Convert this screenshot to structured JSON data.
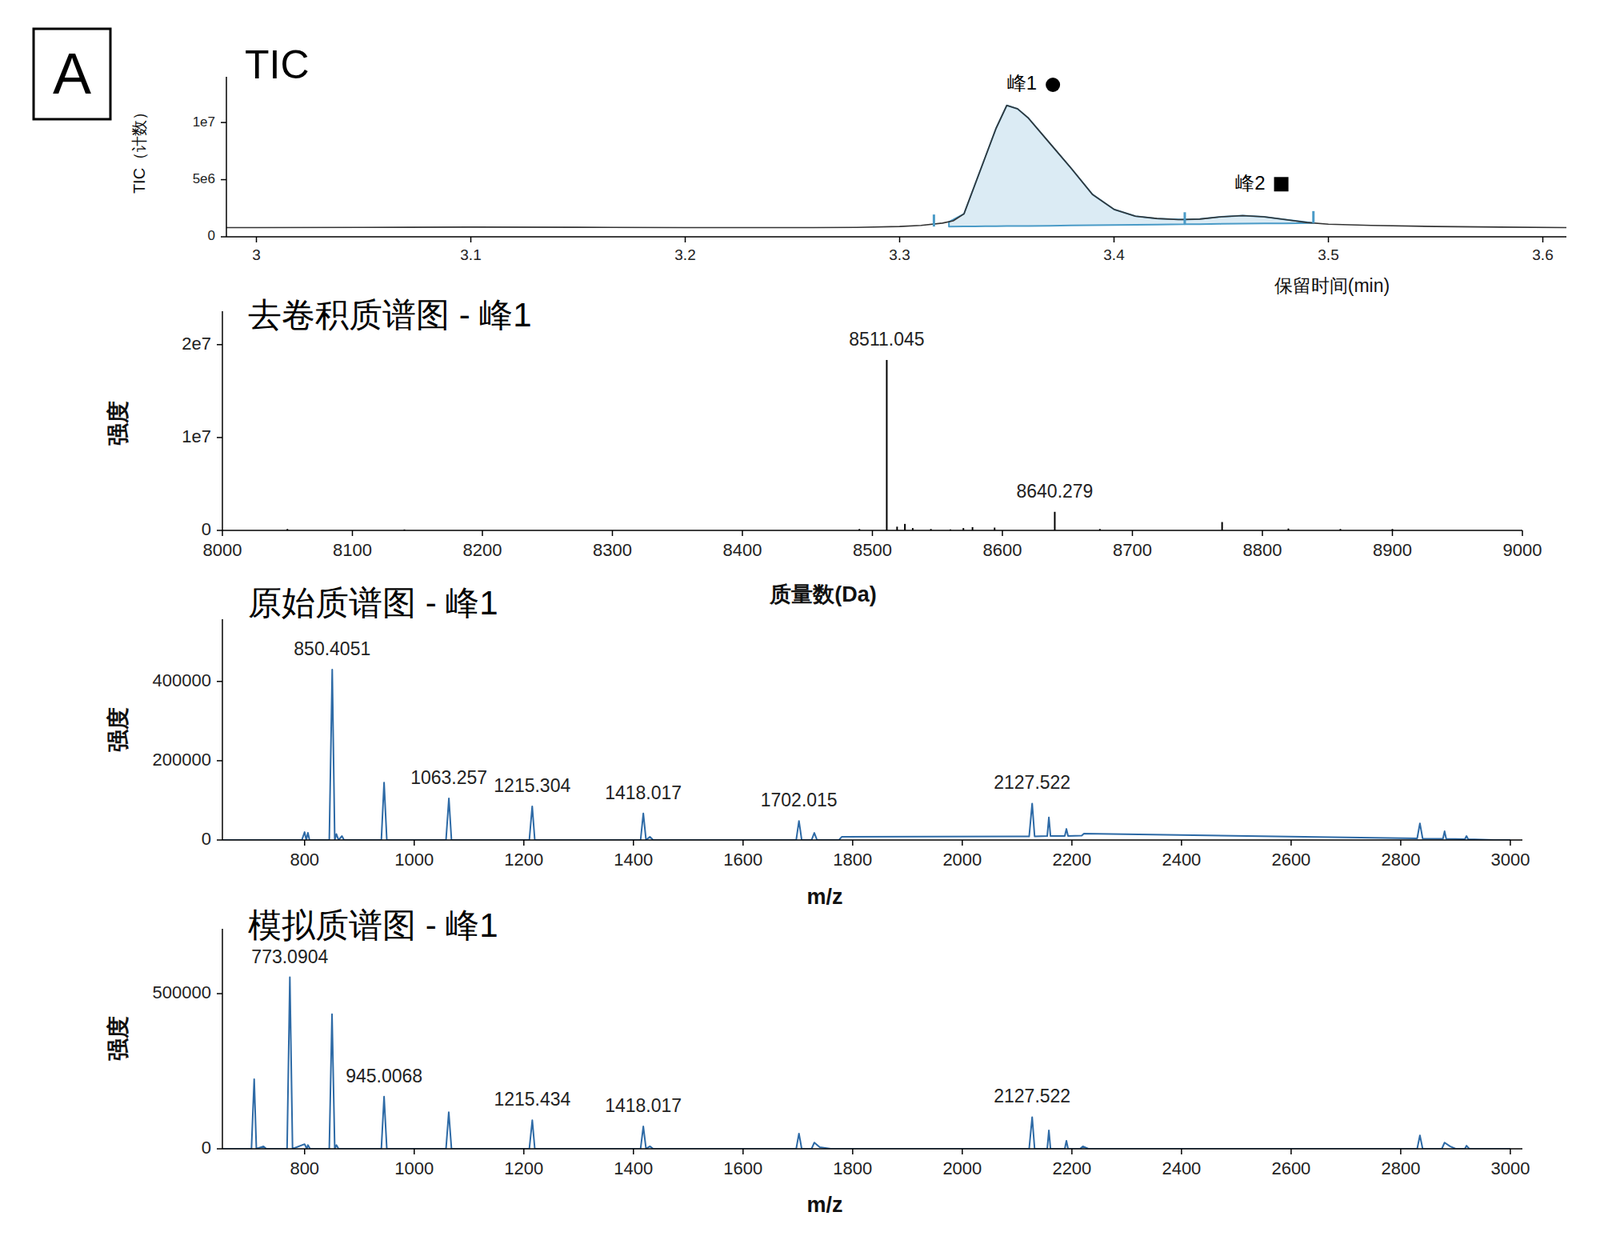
{
  "panel_label": "A",
  "chart_data": [
    {
      "type": "line",
      "title": "TIC",
      "x_label": "保留时间(min)",
      "y_label": "TIC（计数）",
      "xlim": [
        2.986,
        3.611
      ],
      "xticks": [
        3,
        3.1,
        3.2,
        3.3,
        3.4,
        3.5,
        3.6
      ],
      "ylim": [
        0,
        14000000
      ],
      "yticks": [
        0,
        {
          "value": 5000000,
          "label": "5e6"
        },
        {
          "value": 10000000,
          "label": "1e7"
        }
      ],
      "grid": false,
      "series": [
        {
          "type": "area",
          "color": "#4a9bc7",
          "x": [
            3.323,
            3.33,
            3.335,
            3.34,
            3.345,
            3.35,
            3.355,
            3.36,
            3.37,
            3.38,
            3.39,
            3.4,
            3.41,
            3.42,
            3.433
          ],
          "values": [
            1300000,
            2000000,
            4500000,
            7000000,
            9500000,
            11500000,
            11200000,
            10400000,
            8200000,
            6000000,
            3700000,
            2400000,
            1800000,
            1600000,
            1500000
          ],
          "baseline": [
            900000,
            910000,
            915000,
            920000,
            930000,
            940000,
            945000,
            950000,
            970000,
            990000,
            1010000,
            1030000,
            1050000,
            1070000,
            1100000
          ]
        },
        {
          "type": "area",
          "color": "#4a9bc7",
          "x": [
            3.433,
            3.44,
            3.45,
            3.46,
            3.47,
            3.48,
            3.493
          ],
          "values": [
            1500000,
            1550000,
            1750000,
            1850000,
            1750000,
            1500000,
            1200000
          ],
          "baseline": [
            1100000,
            1110000,
            1130000,
            1150000,
            1170000,
            1180000,
            1200000
          ]
        },
        {
          "type": "line",
          "color": "#333333",
          "x": [
            2.986,
            3.0,
            3.05,
            3.1,
            3.15,
            3.2,
            3.25,
            3.28,
            3.3,
            3.31,
            3.32,
            3.325,
            3.33,
            3.335,
            3.34,
            3.345,
            3.35,
            3.355,
            3.36,
            3.37,
            3.38,
            3.39,
            3.4,
            3.41,
            3.42,
            3.43,
            3.44,
            3.45,
            3.46,
            3.47,
            3.48,
            3.49,
            3.5,
            3.52,
            3.55,
            3.58,
            3.611
          ],
          "values": [
            800000,
            800000,
            820000,
            850000,
            830000,
            800000,
            800000,
            820000,
            900000,
            1000000,
            1200000,
            1400000,
            2000000,
            4500000,
            7000000,
            9500000,
            11500000,
            11200000,
            10400000,
            8200000,
            6000000,
            3700000,
            2400000,
            1800000,
            1600000,
            1500000,
            1550000,
            1750000,
            1850000,
            1750000,
            1500000,
            1250000,
            1100000,
            1000000,
            900000,
            850000,
            800000
          ]
        },
        {
          "type": "marker",
          "marker": "vline",
          "color": "#4a9bc7",
          "x": [
            3.316,
            3.433,
            3.493
          ],
          "values": [
            900000,
            1100000,
            1200000
          ]
        }
      ],
      "annotations": [
        {
          "text": "峰1",
          "x": 3.3715,
          "y": 13300000,
          "marker": "circle"
        },
        {
          "text": "峰2",
          "x": 3.478,
          "y": 4600000,
          "marker": "square"
        }
      ]
    },
    {
      "type": "stem",
      "title": "去卷积质谱图 - 峰1",
      "x_label": "质量数(Da)",
      "y_label": "强度",
      "xlim": [
        8000,
        9000
      ],
      "xticks": [
        8000,
        8100,
        8200,
        8300,
        8400,
        8500,
        8600,
        8700,
        8800,
        8900,
        9000
      ],
      "ylim": [
        0,
        23600000
      ],
      "yticks": [
        0,
        {
          "value": 10000000,
          "label": "1e7"
        },
        {
          "value": 20000000,
          "label": "2e7"
        }
      ],
      "grid": false,
      "series": [
        {
          "color": "#000000",
          "x": [
            8050,
            8140,
            8490,
            8511.045,
            8519,
            8525,
            8531,
            8545,
            8560,
            8570,
            8577,
            8594,
            8640.279,
            8675,
            8769,
            8820,
            8860,
            8900
          ],
          "values": [
            150000,
            100000,
            150000,
            18350000,
            400000,
            700000,
            250000,
            150000,
            100000,
            250000,
            350000,
            300000,
            2000000,
            150000,
            900000,
            200000,
            150000,
            150000
          ]
        }
      ],
      "annotations": [
        {
          "text": "8511.045",
          "x": 8511.045,
          "y": 18350000
        },
        {
          "text": "8640.279",
          "x": 8640.279,
          "y": 2000000
        }
      ]
    },
    {
      "type": "line",
      "title": "原始质谱图 - 峰1",
      "x_label": "m/z",
      "y_label": "强度",
      "xlim": [
        650,
        3022
      ],
      "xticks": [
        800,
        1000,
        1200,
        1400,
        1600,
        1800,
        2000,
        2200,
        2400,
        2600,
        2800,
        3000
      ],
      "ylim": [
        0,
        557000
      ],
      "yticks": [
        0,
        200000,
        400000
      ],
      "grid": false,
      "series": [
        {
          "color": "#2d6aa6",
          "x": [
            650,
            795,
            800,
            803,
            806,
            809,
            845,
            850.4051,
            855,
            858,
            862,
            868,
            872,
            940,
            945,
            950,
            1058,
            1063.257,
            1068,
            1210,
            1215.304,
            1220,
            1413,
            1418.017,
            1423,
            1430,
            1436,
            1697,
            1702.015,
            1707,
            1725,
            1730,
            1735,
            1775,
            1780,
            2122,
            2127.522,
            2132,
            2155,
            2158,
            2161,
            2187,
            2190,
            2193,
            2218,
            2222,
            2830,
            2835,
            2840,
            2877,
            2880,
            2883,
            2917,
            2920,
            2923,
            2970,
            3000
          ],
          "values": [
            0,
            0,
            20000,
            0,
            18000,
            0,
            0,
            430000,
            0,
            15000,
            0,
            10000,
            0,
            0,
            145000,
            0,
            0,
            105000,
            0,
            0,
            85000,
            0,
            0,
            67000,
            0,
            8000,
            0,
            0,
            48000,
            0,
            0,
            18000,
            0,
            0,
            8000,
            9000,
            92000,
            9000,
            10000,
            57000,
            10000,
            10000,
            28000,
            10000,
            11000,
            16000,
            4000,
            42000,
            3500,
            3000,
            22000,
            3000,
            2000,
            10000,
            2000,
            0,
            0
          ]
        }
      ],
      "annotations": [
        {
          "text": "850.4051",
          "x": 850.4051,
          "y": 430000
        },
        {
          "text": "1063.257",
          "x": 1063.257,
          "y": 105000
        },
        {
          "text": "1215.304",
          "x": 1215.304,
          "y": 85000
        },
        {
          "text": "1418.017",
          "x": 1418.017,
          "y": 67000
        },
        {
          "text": "1702.015",
          "x": 1702.015,
          "y": 48000
        },
        {
          "text": "2127.522",
          "x": 2127.522,
          "y": 92000
        }
      ]
    },
    {
      "type": "line",
      "title": "模拟质谱图 - 峰1",
      "x_label": "m/z",
      "y_label": "强度",
      "xlim": [
        650,
        3022
      ],
      "xticks": [
        800,
        1000,
        1200,
        1400,
        1600,
        1800,
        2000,
        2200,
        2400,
        2600,
        2800,
        3000
      ],
      "ylim": [
        0,
        709000
      ],
      "yticks": [
        0,
        500000
      ],
      "grid": false,
      "series": [
        {
          "color": "#2d6aa6",
          "x": [
            650,
            703,
            708,
            712,
            725,
            730,
            768,
            773.0904,
            778,
            800,
            804,
            806,
            810,
            845,
            850,
            855,
            858,
            862,
            940,
            945.0068,
            950,
            1058,
            1063,
            1068,
            1210,
            1215.434,
            1220,
            1413,
            1418.017,
            1423,
            1430,
            1436,
            1697,
            1702,
            1707,
            1725,
            1730,
            1740,
            1760,
            2122,
            2127.522,
            2132,
            2155,
            2158,
            2161,
            2187,
            2190,
            2193,
            2215,
            2220,
            2230,
            2830,
            2835,
            2840,
            2875,
            2880,
            2890,
            2900,
            2917,
            2920,
            2925,
            3000
          ],
          "values": [
            0,
            0,
            224000,
            0,
            8000,
            0,
            0,
            553000,
            0,
            15000,
            0,
            12000,
            0,
            0,
            434000,
            0,
            12000,
            0,
            0,
            168000,
            0,
            0,
            118000,
            0,
            0,
            92000,
            0,
            0,
            72000,
            0,
            8000,
            0,
            0,
            49000,
            0,
            0,
            20000,
            5000,
            0,
            0,
            102000,
            0,
            0,
            59000,
            0,
            0,
            26000,
            0,
            0,
            8000,
            0,
            0,
            43000,
            0,
            0,
            20000,
            8000,
            0,
            0,
            10000,
            0,
            0
          ]
        }
      ],
      "annotations": [
        {
          "text": "773.0904",
          "x": 773.0904,
          "y": 553000
        },
        {
          "text": "945.0068",
          "x": 945.0068,
          "y": 168000
        },
        {
          "text": "1215.434",
          "x": 1215.434,
          "y": 92000
        },
        {
          "text": "1418.017",
          "x": 1418.017,
          "y": 72000
        },
        {
          "text": "2127.522",
          "x": 2127.522,
          "y": 102000
        }
      ]
    }
  ]
}
